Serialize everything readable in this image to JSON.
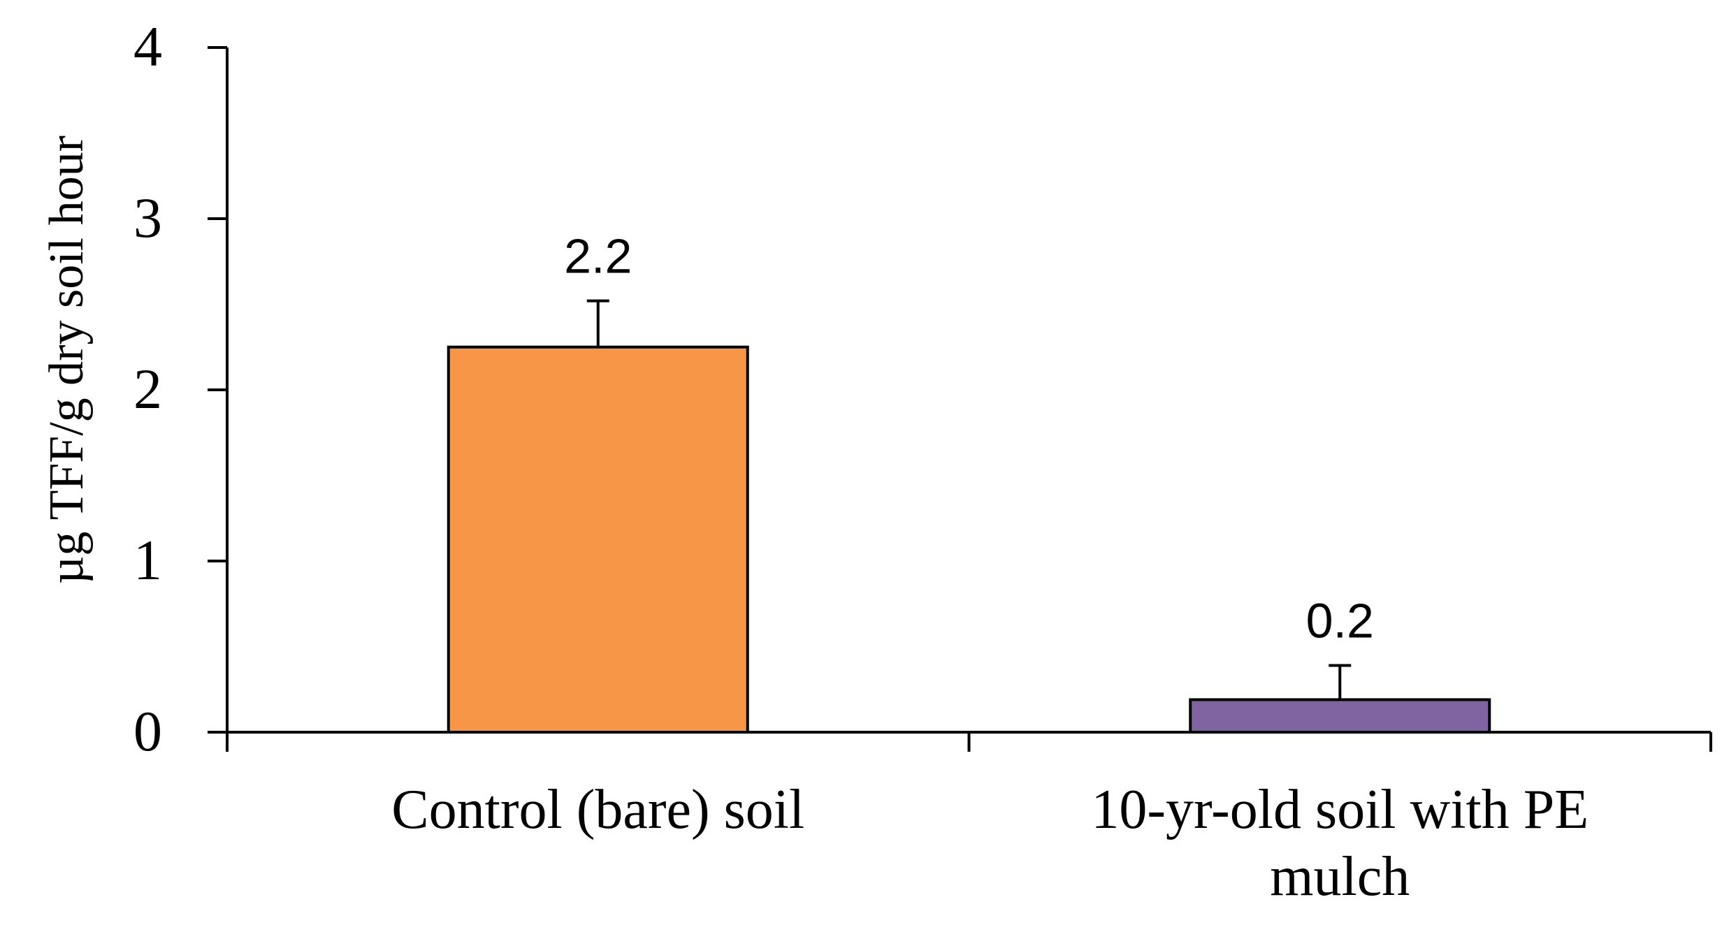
{
  "chart_data": {
    "type": "bar",
    "title": "",
    "xlabel": "",
    "ylabel": "µg TFF/g dry soil hour",
    "ylim": [
      0,
      4
    ],
    "yticks": [
      0,
      1,
      2,
      3,
      4
    ],
    "grid": false,
    "categories": [
      [
        "Control (bare) soil"
      ],
      [
        "10-yr-old soil with PE",
        "mulch"
      ]
    ],
    "values": [
      2.25,
      0.19
    ],
    "error_upper": [
      0.27,
      0.2
    ],
    "data_labels": [
      "2.2",
      "0.2"
    ],
    "colors": [
      "#F79646",
      "#8064A2"
    ]
  }
}
